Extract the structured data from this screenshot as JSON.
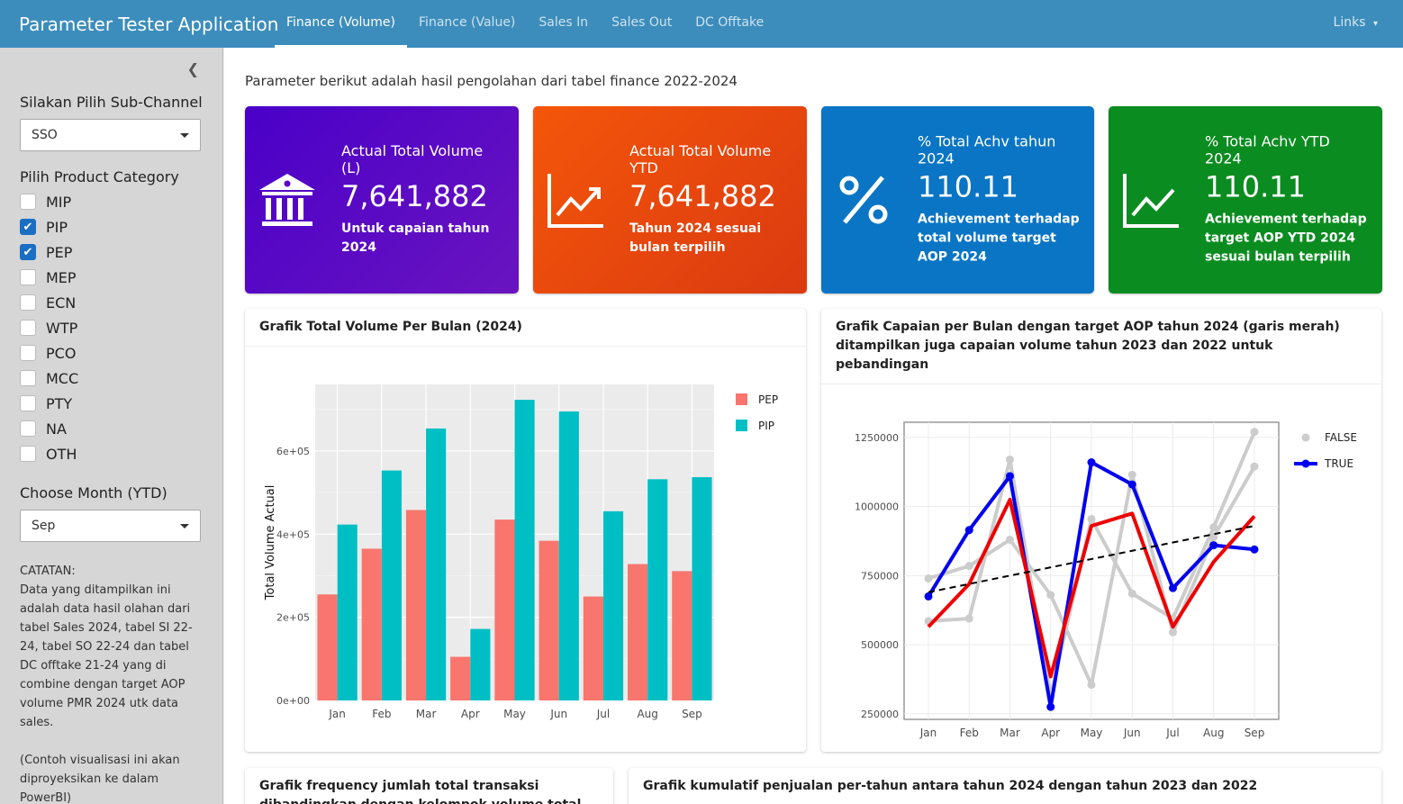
{
  "app_title": "Parameter Tester Application",
  "nav": [
    "Finance (Volume)",
    "Finance (Value)",
    "Sales In",
    "Sales Out",
    "DC Offtake"
  ],
  "links_label": "Links",
  "sidebar": {
    "subchannel_label": "Silakan Pilih Sub-Channel",
    "subchannel_value": "SSO",
    "category_label": "Pilih Product Category",
    "categories": [
      {
        "name": "MIP",
        "checked": false
      },
      {
        "name": "PIP",
        "checked": true
      },
      {
        "name": "PEP",
        "checked": true
      },
      {
        "name": "MEP",
        "checked": false
      },
      {
        "name": "ECN",
        "checked": false
      },
      {
        "name": "WTP",
        "checked": false
      },
      {
        "name": "PCO",
        "checked": false
      },
      {
        "name": "MCC",
        "checked": false
      },
      {
        "name": "PTY",
        "checked": false
      },
      {
        "name": "NA",
        "checked": false
      },
      {
        "name": "OTH",
        "checked": false
      }
    ],
    "month_label": "Choose Month (YTD)",
    "month_value": "Sep",
    "note_title": "CATATAN:",
    "note_body": "Data yang ditampilkan ini adalah data hasil olahan dari tabel Sales 2024, tabel SI 22-24, tabel SO 22-24 dan tabel DC offtake 21-24 yang di combine dengan target AOP volume PMR 2024 utk data sales.",
    "note_extra": "(Contoh visualisasi ini akan diproyeksikan ke dalam PowerBI)"
  },
  "intro": "Parameter berikut adalah hasil pengolahan dari tabel finance 2022-2024",
  "value_boxes": [
    {
      "title": "Actual Total Volume (L)",
      "value": "7,641,882",
      "subtitle": "Untuk capaian tahun 2024",
      "icon": "bank-icon",
      "color": "#5a00c8"
    },
    {
      "title": "Actual Total Volume YTD",
      "value": "7,641,882",
      "subtitle": "Tahun 2024 sesuai bulan terpilih",
      "icon": "chart-line-icon",
      "color": "#ee4a0e"
    },
    {
      "title": "% Total Achv tahun 2024",
      "value": "110.11",
      "subtitle": "Achievement terhadap total volume target AOP 2024",
      "icon": "percent-icon",
      "color": "#0073c4"
    },
    {
      "title": "% Total Achv YTD 2024",
      "value": "110.11",
      "subtitle": "Achievement terhadap target AOP YTD 2024 sesuai bulan terpilih",
      "icon": "chart-line-icon",
      "color": "#0b8c20"
    }
  ],
  "boxes": {
    "bar_title": "Grafik Total Volume Per Bulan (2024)",
    "line_title": "Grafik Capaian per Bulan dengan target AOP tahun 2024 (garis merah) ditampilkan juga capaian volume tahun 2023 dan 2022 untuk pebandingan",
    "freq_title": "Grafik frequency jumlah total transaksi dibandingkan dengan kelompok volume total sales. Grafik ini",
    "cum_title": "Grafik kumulatif penjualan per-tahun antara tahun 2024 dengan tahun 2023 dan 2022"
  },
  "chart_data": [
    {
      "type": "bar",
      "ylabel": "Total Volume Actual",
      "categories": [
        "Jan",
        "Feb",
        "Mar",
        "Apr",
        "May",
        "Jun",
        "Jul",
        "Aug",
        "Sep"
      ],
      "ylim": [
        0,
        760000
      ],
      "yticks": [
        0,
        200000,
        400000,
        600000
      ],
      "ytick_labels": [
        "0e+00",
        "2e+05",
        "4e+05",
        "6e+05"
      ],
      "legend_position": "right",
      "series": [
        {
          "name": "PEP",
          "color": "#f8766d",
          "values": [
            255000,
            365000,
            458000,
            105000,
            435000,
            384000,
            250000,
            328000,
            311000
          ]
        },
        {
          "name": "PIP",
          "color": "#00bfc4",
          "values": [
            423000,
            553000,
            654000,
            172000,
            723000,
            695000,
            455000,
            532000,
            537000
          ]
        }
      ]
    },
    {
      "type": "line",
      "categories": [
        "Jan",
        "Feb",
        "Mar",
        "Apr",
        "May",
        "Jun",
        "Jul",
        "Aug",
        "Sep"
      ],
      "ylim": [
        230000,
        1305000
      ],
      "yticks": [
        250000,
        500000,
        750000,
        1000000,
        1250000
      ],
      "ytick_labels": [
        "250000",
        "500000",
        "750000",
        "1000000",
        "1250000"
      ],
      "legend_position": "right",
      "series": [
        {
          "name": "FALSE",
          "color": "#cccccc",
          "values": [
            740000,
            785000,
            880000,
            680000,
            355000,
            1115000,
            545000,
            890000,
            1145000
          ]
        },
        {
          "name": "FALSE",
          "color": "#cccccc",
          "values": [
            585000,
            595000,
            1170000,
            315000,
            955000,
            685000,
            595000,
            925000,
            1270000
          ]
        },
        {
          "name": "TRUE",
          "color": "#0000ee",
          "values": [
            675000,
            915000,
            1110000,
            275000,
            1160000,
            1080000,
            705000,
            860000,
            845000
          ]
        },
        {
          "name": "",
          "color": "#ee0000",
          "values": [
            565000,
            720000,
            1025000,
            385000,
            930000,
            975000,
            565000,
            800000,
            965000
          ]
        },
        {
          "name": "",
          "color": "#000000",
          "dashed": true,
          "values": [
            690000,
            720000,
            750000,
            780000,
            810000,
            840000,
            870000,
            900000,
            930000
          ]
        }
      ],
      "legend": [
        {
          "label": "FALSE",
          "color": "#cccccc"
        },
        {
          "label": "TRUE",
          "color": "#0000ee"
        }
      ]
    }
  ]
}
